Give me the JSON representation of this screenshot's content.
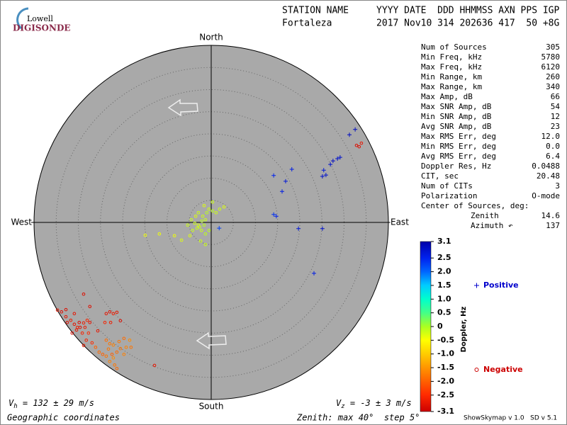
{
  "header": {
    "logo_top": "Lowell",
    "logo_bottom": "DIGISONDE",
    "columns": "STATION NAME     YYYY DATE  DDD HHMMSS AXN PPS IGP",
    "values": "Fortaleza        2017 Nov10 314 202636 417  50 +8G"
  },
  "stats": [
    [
      "Num of Sources",
      "305"
    ],
    [
      "Min Freq, kHz",
      "5780"
    ],
    [
      "Max Freq, kHz",
      "6120"
    ],
    [
      "Min Range, km",
      "260"
    ],
    [
      "Max Range, km",
      "340"
    ],
    [
      "Max Amp, dB",
      "66"
    ],
    [
      "Max SNR Amp, dB",
      "54"
    ],
    [
      "Min SNR Amp, dB",
      "12"
    ],
    [
      "Avg SNR Amp, dB",
      "23"
    ],
    [
      "Max RMS Err, deg",
      "12.0"
    ],
    [
      "Min RMS Err, deg",
      "0.0"
    ],
    [
      "Avg RMS Err, deg",
      "6.4"
    ],
    [
      "Doppler Res, Hz",
      "0.0488"
    ],
    [
      "CIT, sec",
      "20.48"
    ],
    [
      "Num of CITs",
      "3"
    ],
    [
      "Polarization",
      "O-mode"
    ]
  ],
  "center": {
    "title": "Center of Sources, deg:",
    "rows": [
      [
        "Zenith",
        "14.6"
      ],
      [
        "Azimuth ↶",
        "137"
      ]
    ]
  },
  "footer": {
    "vh": {
      "symbol": "V",
      "sub": "h",
      "text": " = 132 ± 29 m/s"
    },
    "vz": {
      "symbol": "V",
      "sub": "z",
      "text": " = -3 ± 3 m/s"
    },
    "coords": "Geographic coordinates",
    "zenith": "Zenith: max 40°  step 5°",
    "version": "ShowSkymap v 1.0   SD v 5.1"
  },
  "chart_data": {
    "type": "polar-scatter",
    "directions": {
      "north": "North",
      "south": "South",
      "east": "East",
      "west": "West"
    },
    "rlim": [
      0,
      40
    ],
    "rticks": [
      5,
      10,
      15,
      20,
      25,
      30,
      35
    ],
    "colorbar": {
      "label": "Doppler, Hz",
      "clim": [
        -3.1,
        3.1
      ],
      "cticks": [
        3.1,
        2.5,
        {
          "value": 2,
          "label": "2.0"
        },
        1.5,
        {
          "value": 1,
          "label": "1.0"
        },
        0.5,
        0,
        -0.5,
        {
          "value": -1,
          "label": "-1.0"
        },
        -1.5,
        {
          "value": -2,
          "label": "-2.0"
        },
        -2.5,
        -3.1
      ],
      "colorscale": [
        [
          -3.1,
          "#cc0000"
        ],
        [
          -2.5,
          "#ff2a00"
        ],
        [
          -2,
          "#ff6000"
        ],
        [
          -1.5,
          "#ff9500"
        ],
        [
          -1,
          "#ffcc00"
        ],
        [
          -0.5,
          "#ffff00"
        ],
        [
          0,
          "#aaff22"
        ],
        [
          0.5,
          "#44ff88"
        ],
        [
          1,
          "#00ffcc"
        ],
        [
          1.5,
          "#00ccff"
        ],
        [
          2,
          "#0066ff"
        ],
        [
          2.5,
          "#0022ee"
        ],
        [
          3.1,
          "#0000aa"
        ]
      ]
    },
    "series": [
      {
        "name": "Positive",
        "marker": "+",
        "legend_color": "#0000cc",
        "x": [
          32.5,
          31.2,
          29.1,
          28.5,
          27.5,
          26.9,
          25.4,
          25.1,
          25.9,
          18.2,
          16.8,
          14.1,
          16.0,
          14.1,
          14.7,
          19.7,
          25.1,
          23.2,
          1.8
        ],
        "y": [
          21.0,
          19.8,
          14.7,
          14.4,
          13.9,
          13.1,
          11.8,
          10.4,
          10.7,
          12.0,
          9.3,
          10.6,
          7.0,
          1.8,
          1.4,
          -1.4,
          -1.4,
          -11.5,
          -1.3
        ],
        "doppler": [
          2.9,
          2.9,
          2.8,
          2.8,
          2.9,
          2.8,
          2.7,
          2.8,
          2.8,
          2.6,
          2.7,
          2.5,
          2.6,
          2.4,
          2.5,
          2.7,
          2.8,
          2.6,
          2.3
        ]
      },
      {
        "name": "Negative",
        "marker": "o",
        "legend_color": "#cc0000",
        "x": [
          -28.8,
          -34.7,
          -33.8,
          -32.8,
          -31.7,
          -32.5,
          -30.9,
          -29.8,
          -28.8,
          -28.0,
          -27.4,
          -29.6,
          -28.5,
          -30.4,
          -29.1,
          -31.4,
          -27.7,
          -28.2,
          -26.9,
          -28.8,
          -23.7,
          -22.9,
          -22.1,
          -21.3,
          -24.0,
          -22.7,
          -25.6,
          -20.5,
          -27.4,
          -12.8,
          -32.8,
          -30.9,
          -30.2,
          -23.7,
          -22.9,
          -22.1,
          -20.8,
          -19.7,
          -18.4,
          -19.2,
          -20.5,
          -21.3,
          -22.4,
          -23.7,
          -22.9,
          -21.8,
          -21.3,
          -24.5,
          -25.3,
          -19.7,
          -18.1,
          -22.1,
          -23.2,
          -26.1,
          -4.5,
          -3.7,
          -2.9,
          -2.1,
          -2.6,
          -3.2,
          -1.6,
          -1.3,
          -1.9,
          -1.0,
          -0.5,
          -1.6,
          0.3,
          1.1,
          1.9,
          2.9,
          -2.9,
          -4.2,
          -4.8,
          -5.3,
          -0.5,
          -1.3,
          -2.4,
          -3.5,
          -2.2,
          -1.3,
          0.3,
          -6.7,
          -14.9,
          -11.7,
          -8.3,
          32.8,
          33.4,
          33.9
        ],
        "y": [
          -16.2,
          -19.8,
          -20.2,
          -21.3,
          -22.1,
          -22.6,
          -23.0,
          -22.6,
          -22.7,
          -22.1,
          -22.6,
          -23.7,
          -23.7,
          -24.3,
          -25.0,
          -25.0,
          -25.0,
          -26.6,
          -27.2,
          -27.8,
          -20.6,
          -20.2,
          -20.6,
          -20.3,
          -22.6,
          -22.6,
          -24.5,
          -22.2,
          -19.0,
          -32.3,
          -19.7,
          -20.6,
          -23.7,
          -26.6,
          -27.4,
          -27.7,
          -26.9,
          -26.2,
          -26.6,
          -28.2,
          -28.5,
          -29.3,
          -29.8,
          -30.2,
          -31.4,
          -32.2,
          -33.0,
          -29.8,
          -29.3,
          -29.8,
          -28.2,
          -30.6,
          -28.6,
          -28.2,
          0.6,
          -0.2,
          -0.6,
          0.3,
          -1.0,
          -1.3,
          -0.6,
          0.6,
          1.4,
          2.2,
          3.0,
          3.8,
          2.6,
          2.2,
          3.0,
          3.5,
          2.2,
          -1.8,
          -3.0,
          -0.6,
          -1.8,
          -5.0,
          -4.2,
          1.4,
          -1.8,
          -2.6,
          4.6,
          -4.0,
          -2.9,
          -2.6,
          -3.0,
          17.4,
          17.1,
          17.9
        ],
        "doppler": [
          -2.9,
          -2.8,
          -2.9,
          -2.8,
          -2.7,
          -2.9,
          -2.8,
          -2.9,
          -2.7,
          -2.6,
          -2.8,
          -2.9,
          -2.7,
          -2.8,
          -2.6,
          -2.9,
          -2.5,
          -2.6,
          -2.5,
          -2.7,
          -2.8,
          -2.9,
          -2.7,
          -2.8,
          -2.6,
          -2.7,
          -2.8,
          -2.9,
          -2.9,
          -2.8,
          -2.9,
          -2.8,
          -2.7,
          -1.9,
          -1.8,
          -1.7,
          -1.8,
          -1.9,
          -1.6,
          -1.7,
          -1.8,
          -1.9,
          -2.0,
          -1.8,
          -1.7,
          -1.8,
          -1.9,
          -2.0,
          -1.9,
          -1.7,
          -1.8,
          -1.6,
          -1.8,
          -2.0,
          -0.2,
          -0.2,
          -0.3,
          -0.1,
          -0.2,
          -0.2,
          -0.1,
          -0.2,
          -0.2,
          -0.1,
          -0.2,
          -0.3,
          -0.1,
          -0.2,
          -0.2,
          -0.3,
          -0.2,
          -0.2,
          -0.3,
          -0.2,
          -0.1,
          -0.2,
          -0.2,
          -0.3,
          -0.2,
          -0.1,
          -0.2,
          -0.3,
          -0.4,
          -0.4,
          -0.4,
          -2.9,
          -2.9,
          -2.8
        ]
      }
    ]
  }
}
